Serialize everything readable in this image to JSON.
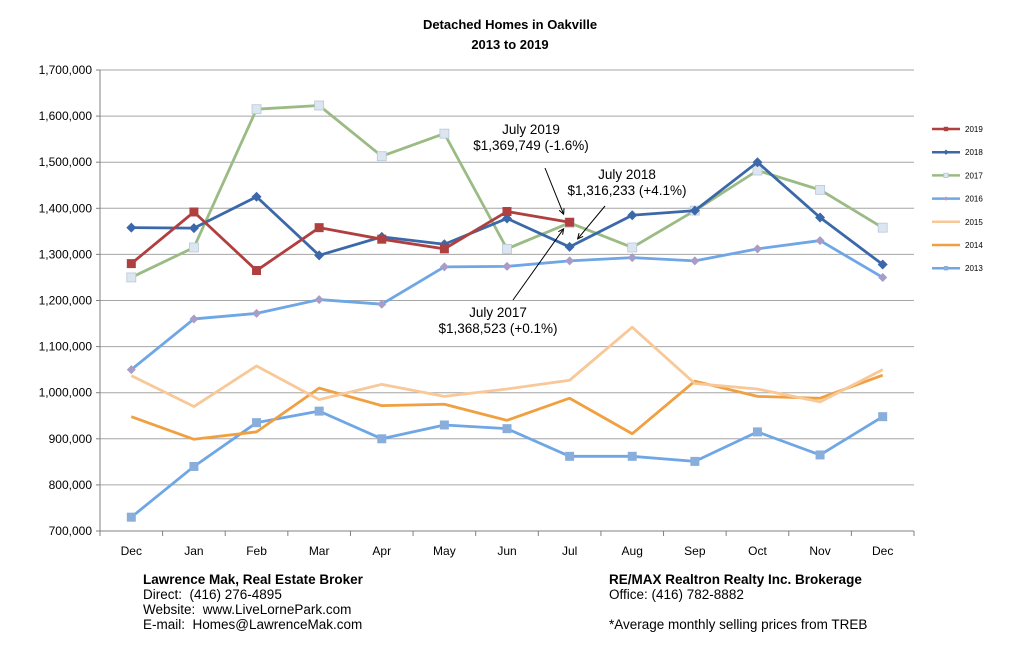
{
  "chart_data": {
    "type": "line",
    "title": "Detached Homes in Oakville",
    "subtitle": "2013 to 2019",
    "categories": [
      "Dec",
      "Jan",
      "Feb",
      "Mar",
      "Apr",
      "May",
      "Jun",
      "Jul",
      "Aug",
      "Sep",
      "Oct",
      "Nov",
      "Dec"
    ],
    "ylim": [
      700000,
      1700000
    ],
    "yticks": [
      "700,000",
      "800,000",
      "900,000",
      "1,000,000",
      "1,100,000",
      "1,200,000",
      "1,300,000",
      "1,400,000",
      "1,500,000",
      "1,600,000",
      "1,700,000"
    ],
    "grid": true,
    "legend_position": "right",
    "series": [
      {
        "name": "2019",
        "color": "#b04040",
        "marker": "square",
        "values": [
          1280000,
          1392000,
          1265000,
          1358000,
          1333000,
          1312000,
          1393000,
          1369749,
          null,
          null,
          null,
          null,
          null
        ]
      },
      {
        "name": "2018",
        "color": "#3a68a8",
        "marker": "diamond",
        "values": [
          1358000,
          1357000,
          1425000,
          1298000,
          1338000,
          1322000,
          1378000,
          1316233,
          1385000,
          1395000,
          1500000,
          1380000,
          1278000
        ]
      },
      {
        "name": "2017",
        "color": "#9bbb84",
        "marker": "square-light",
        "values": [
          1250000,
          1315000,
          1615000,
          1623000,
          1513000,
          1562000,
          1312000,
          1368523,
          1315000,
          1395000,
          1482000,
          1440000,
          1358000
        ]
      },
      {
        "name": "2016",
        "color": "#6ea6e6",
        "marker": "diamond-purple",
        "values": [
          1050000,
          1160000,
          1172000,
          1202000,
          1192000,
          1273000,
          1274000,
          1286000,
          1293000,
          1286000,
          1312000,
          1330000,
          1250000
        ]
      },
      {
        "name": "2015",
        "color": "#f8c898",
        "marker": "none",
        "values": [
          1037000,
          970000,
          1058000,
          985000,
          1018000,
          992000,
          1008000,
          1027000,
          1142000,
          1020000,
          1008000,
          980000,
          1050000
        ]
      },
      {
        "name": "2014",
        "color": "#f0a040",
        "marker": "none",
        "values": [
          948000,
          899000,
          915000,
          1010000,
          972000,
          975000,
          940000,
          988000,
          911000,
          1025000,
          992000,
          988000,
          1038000
        ]
      },
      {
        "name": "2013",
        "color": "#6ea6e6",
        "marker": "square-blue",
        "values": [
          730000,
          840000,
          935000,
          960000,
          900000,
          930000,
          922000,
          862000,
          862000,
          851000,
          915000,
          865000,
          948000
        ]
      }
    ],
    "annotations": [
      {
        "lines": [
          "July 2019",
          "$1,369,749 (-1.6%)"
        ]
      },
      {
        "lines": [
          "July 2018",
          "$1,316,233 (+4.1%)"
        ]
      },
      {
        "lines": [
          "July 2017",
          "$1,368,523 (+0.1%)"
        ]
      }
    ]
  },
  "footer": {
    "left": {
      "name": "Lawrence Mak, Real Estate Broker",
      "lines": [
        "Direct:  (416) 276-4895",
        "Website:  www.LiveLornePark.com",
        "E-mail:  Homes@LawrenceMak.com"
      ]
    },
    "right": {
      "name": "RE/MAX Realtron Realty Inc. Brokerage",
      "office": "Office: (416) 782-8882",
      "note": "*Average monthly selling prices from TREB"
    }
  }
}
